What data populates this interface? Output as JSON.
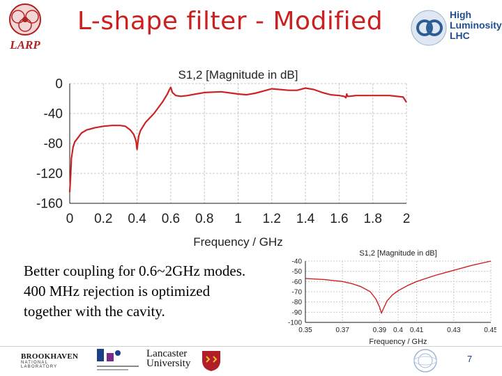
{
  "slide": {
    "title": "L-shape filter - Modified",
    "page_number": "7",
    "caption_lines": [
      "Better coupling for 0.6~2GHz modes.",
      "400 MHz rejection is optimized",
      "together with the cavity."
    ]
  },
  "logos": {
    "larp": "LARP",
    "high_luminosity": [
      "High",
      "Luminosity",
      "LHC"
    ],
    "brookhaven": [
      "BROOKHAVEN",
      "NATIONAL LABORATORY"
    ],
    "lancaster": [
      "Lancaster",
      "University"
    ]
  },
  "colors": {
    "title": "#cc1f1f",
    "curve": "#cc2222",
    "grid": "#c8c8c8",
    "axis": "#1a1a1a"
  },
  "chart_data": [
    {
      "type": "line",
      "title": "S1,2 [Magnitude in dB]",
      "xlabel": "Frequency / GHz",
      "ylabel": "",
      "xlim": [
        0,
        2
      ],
      "ylim": [
        -160,
        0
      ],
      "xticks": [
        "0",
        "0.2",
        "0.4",
        "0.6",
        "0.8",
        "1",
        "1.2",
        "1.4",
        "1.6",
        "1.8",
        "2"
      ],
      "yticks": [
        "0",
        "-40",
        "-80",
        "-120",
        "-160"
      ],
      "grid": true,
      "series": [
        {
          "x": [
            0.0,
            0.005,
            0.01,
            0.02,
            0.03,
            0.05,
            0.07,
            0.1,
            0.15,
            0.2,
            0.25,
            0.3,
            0.33,
            0.36,
            0.38,
            0.39,
            0.395,
            0.4,
            0.405,
            0.41,
            0.42,
            0.45,
            0.5,
            0.55,
            0.58,
            0.59,
            0.6,
            0.61,
            0.63,
            0.66,
            0.7,
            0.75,
            0.8,
            0.9,
            1.0,
            1.05,
            1.1,
            1.15,
            1.2,
            1.3,
            1.35,
            1.4,
            1.45,
            1.5,
            1.55,
            1.6,
            1.63,
            1.64,
            1.645,
            1.65,
            1.66,
            1.7,
            1.8,
            1.9,
            1.98,
            2.0
          ],
          "y": [
            -145,
            -125,
            -100,
            -85,
            -78,
            -72,
            -66,
            -62,
            -59,
            -57,
            -56,
            -56,
            -57,
            -62,
            -68,
            -74,
            -79,
            -88,
            -78,
            -70,
            -63,
            -52,
            -40,
            -25,
            -14,
            -9,
            -5,
            -12,
            -16,
            -17,
            -16,
            -14,
            -12,
            -11,
            -14,
            -15,
            -13,
            -10,
            -7,
            -9,
            -9,
            -6,
            -8,
            -12,
            -15,
            -16,
            -17,
            -19,
            -14,
            -17,
            -17,
            -16,
            -16,
            -16,
            -18,
            -25
          ]
        }
      ]
    },
    {
      "type": "line",
      "title": "S1,2 [Magnitude in dB]",
      "xlabel": "Frequency / GHz",
      "ylabel": "",
      "xlim": [
        0.35,
        0.45
      ],
      "ylim": [
        -100,
        -40
      ],
      "xticks": [
        "0.35",
        "0.37",
        "0.39",
        "0.4",
        "0.41",
        "0.43",
        "0.45"
      ],
      "yticks": [
        "-40",
        "-50",
        "-60",
        "-70",
        "-80",
        "-90",
        "-100"
      ],
      "grid": true,
      "series": [
        {
          "x": [
            0.35,
            0.36,
            0.37,
            0.375,
            0.38,
            0.385,
            0.388,
            0.39,
            0.391,
            0.392,
            0.394,
            0.397,
            0.4,
            0.405,
            0.41,
            0.42,
            0.43,
            0.44,
            0.45
          ],
          "y": [
            -57,
            -58,
            -60,
            -62,
            -65,
            -70,
            -77,
            -85,
            -91,
            -87,
            -79,
            -73,
            -69,
            -64,
            -60,
            -54,
            -49,
            -44,
            -40
          ]
        }
      ]
    }
  ]
}
